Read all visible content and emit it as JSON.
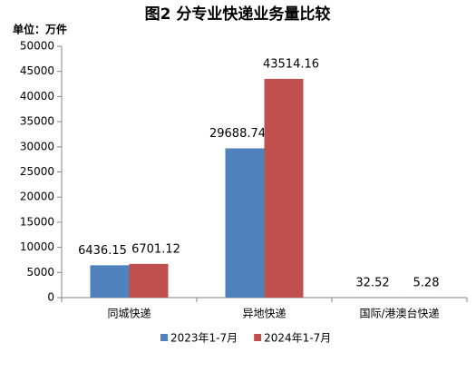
{
  "chart_data": {
    "type": "bar",
    "title": "图2  分专业快递业务量比较",
    "unit_label": "单位：万件",
    "categories": [
      "同城快递",
      "异地快递",
      "国际/港澳台快递"
    ],
    "series": [
      {
        "name": "2023年1-7月",
        "color": "#4f81bd",
        "values": [
          6436.15,
          29688.74,
          32.52
        ]
      },
      {
        "name": "2024年1-7月",
        "color": "#c0504d",
        "values": [
          6701.12,
          43514.16,
          5.28
        ]
      }
    ],
    "ylim": [
      0,
      50000
    ],
    "yticks": [
      0,
      5000,
      10000,
      15000,
      20000,
      25000,
      30000,
      35000,
      40000,
      45000,
      50000
    ],
    "grid": false
  }
}
